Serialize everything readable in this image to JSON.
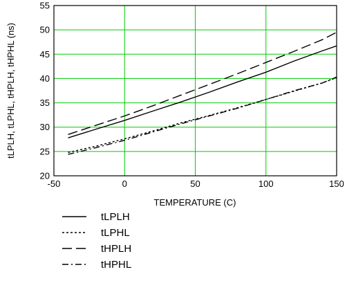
{
  "chart_data": {
    "type": "line",
    "title": "",
    "xlabel": "TEMPERATURE (C)",
    "ylabel": "tLPLH, tLPHL, tHPLH, tHPHL (ns)",
    "xlim": [
      -50,
      150
    ],
    "ylim": [
      20,
      55
    ],
    "x_ticks": [
      -50,
      0,
      50,
      100,
      150
    ],
    "y_ticks": [
      20,
      25,
      30,
      35,
      40,
      45,
      50,
      55
    ],
    "x_tick_labels": [
      "-50",
      "0",
      "50",
      "100",
      "150"
    ],
    "y_tick_labels": [
      "20",
      "25",
      "30",
      "35",
      "40",
      "45",
      "50",
      "55"
    ],
    "grid": true,
    "grid_color": "#00cc00",
    "legend_position": "below",
    "series": [
      {
        "name": "tLPLH",
        "style": "solid",
        "x": [
          -40,
          -20,
          0,
          20,
          40,
          60,
          80,
          100,
          120,
          140,
          150
        ],
        "y": [
          27.8,
          29.6,
          31.4,
          33.3,
          35.2,
          37.2,
          39.3,
          41.3,
          43.6,
          45.7,
          46.7
        ]
      },
      {
        "name": "tLPHL",
        "style": "dotted",
        "x": [
          -40,
          -20,
          0,
          20,
          40,
          60,
          80,
          100,
          120,
          140,
          150
        ],
        "y": [
          24.8,
          26.1,
          27.6,
          29.2,
          30.9,
          32.4,
          34.0,
          35.7,
          37.4,
          39.1,
          40.2
        ]
      },
      {
        "name": "tHPLH",
        "style": "longdash",
        "x": [
          -40,
          -20,
          0,
          20,
          40,
          60,
          80,
          100,
          120,
          140,
          150
        ],
        "y": [
          28.5,
          30.4,
          32.3,
          34.4,
          36.6,
          38.8,
          41.0,
          43.3,
          45.6,
          48.0,
          49.5
        ]
      },
      {
        "name": "tHPHL",
        "style": "dashdot",
        "x": [
          -40,
          -20,
          0,
          20,
          40,
          60,
          80,
          100,
          120,
          140,
          150
        ],
        "y": [
          24.4,
          25.8,
          27.3,
          29.0,
          30.7,
          32.3,
          33.9,
          35.7,
          37.5,
          39.1,
          40.3
        ]
      }
    ]
  }
}
